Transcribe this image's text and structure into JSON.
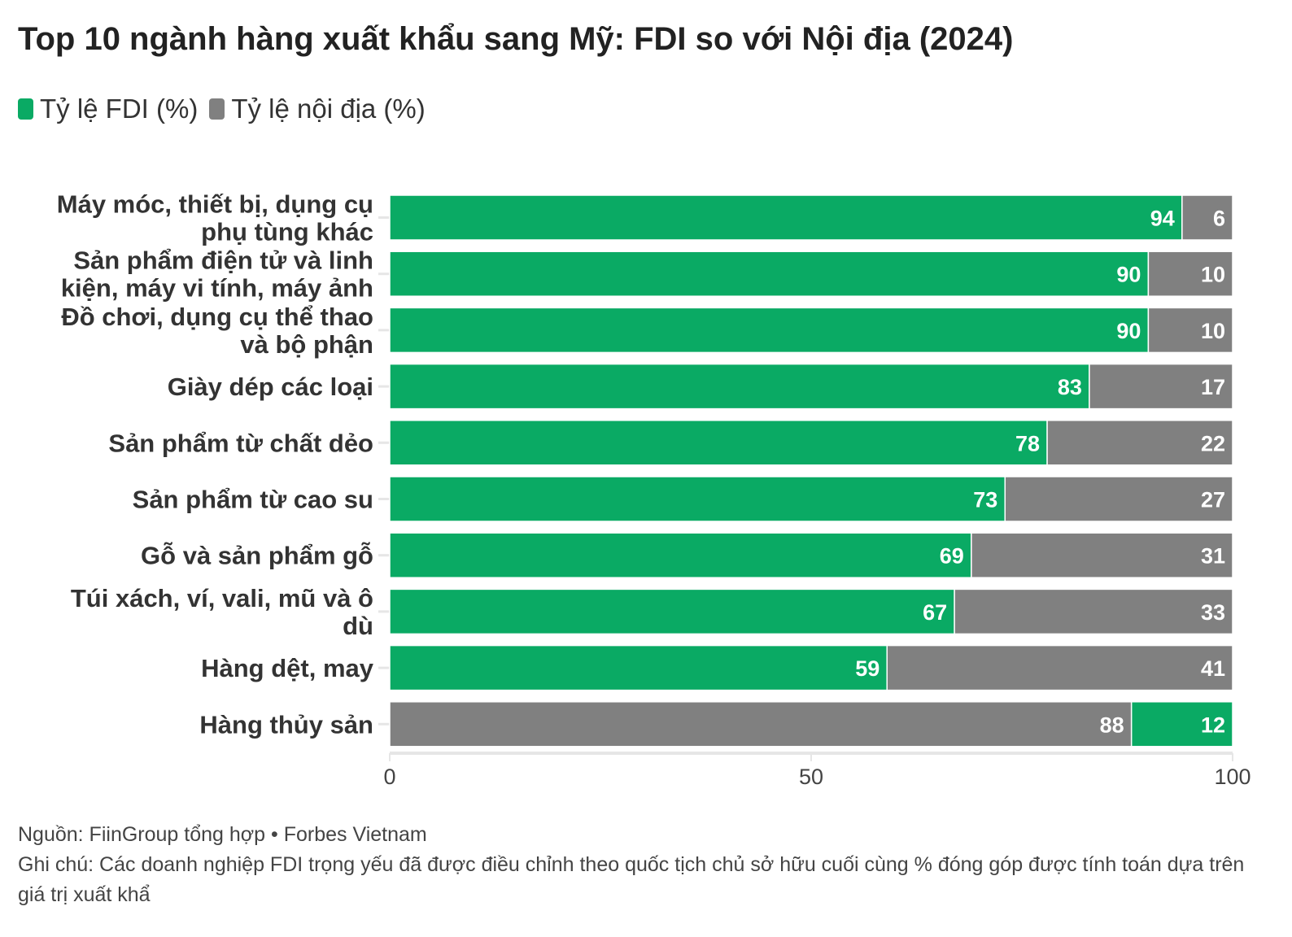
{
  "chart_data": {
    "type": "bar",
    "orientation": "horizontal",
    "stacked": true,
    "title": "Top 10 ngành hàng xuất khẩu sang Mỹ: FDI so với Nội địa (2024)",
    "legend": [
      {
        "name": "Tỷ lệ FDI (%)",
        "color": "#0aaa64"
      },
      {
        "name": "Tỷ lệ nội địa (%)",
        "color": "#808080"
      }
    ],
    "legend_position": "top-left",
    "categories": [
      [
        "Máy móc, thiết bị, dụng cụ",
        "phụ tùng khác"
      ],
      [
        "Sản phẩm điện tử và linh",
        "kiện, máy vi tính, máy ảnh"
      ],
      [
        "Đồ chơi, dụng cụ thể thao",
        "và bộ phận"
      ],
      [
        "Giày dép các loại"
      ],
      [
        "Sản phẩm từ chất dẻo"
      ],
      [
        "Sản phẩm từ cao su"
      ],
      [
        "Gỗ và sản phẩm gỗ"
      ],
      [
        "Túi xách, ví, vali, mũ và ô",
        "dù"
      ],
      [
        "Hàng dệt, may"
      ],
      [
        "Hàng thủy sản"
      ]
    ],
    "series": [
      {
        "name": "Tỷ lệ FDI (%)",
        "values": [
          94,
          90,
          90,
          83,
          78,
          73,
          69,
          67,
          59,
          12
        ]
      },
      {
        "name": "Tỷ lệ nội địa (%)",
        "values": [
          6,
          10,
          10,
          17,
          22,
          27,
          31,
          33,
          41,
          88
        ]
      }
    ],
    "domestic_first_rows": [
      9
    ],
    "xlim": [
      0,
      100
    ],
    "xticks": [
      "0",
      "50",
      "100"
    ],
    "xlabel": "",
    "ylabel": ""
  },
  "footer": {
    "source": "Nguồn: FiinGroup tổng hợp • Forbes Vietnam",
    "note": "Ghi chú: Các doanh nghiệp FDI trọng yếu đã được điều chỉnh theo quốc tịch chủ sở hữu cuối cùng % đóng góp được tính toán dựa trên giá trị xuất khẩ"
  }
}
